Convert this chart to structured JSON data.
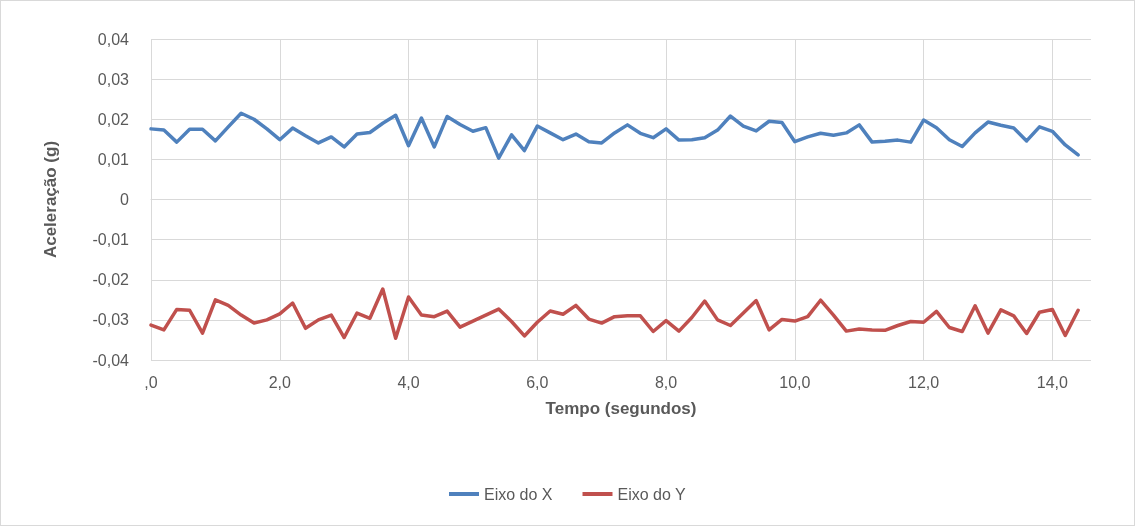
{
  "chart_data": {
    "type": "line",
    "xlabel": "Tempo (segundos)",
    "ylabel": "Aceleração (g)",
    "x": [
      0,
      0.2,
      0.4,
      0.6,
      0.8,
      1,
      1.2,
      1.4,
      1.6,
      1.8,
      2,
      2.2,
      2.4,
      2.6,
      2.8,
      3,
      3.2,
      3.4,
      3.6,
      3.8,
      4,
      4.2,
      4.4,
      4.6,
      4.8,
      5,
      5.2,
      5.4,
      5.6,
      5.8,
      6,
      6.2,
      6.4,
      6.6,
      6.8,
      7,
      7.2,
      7.4,
      7.6,
      7.8,
      8,
      8.2,
      8.4,
      8.6,
      8.8,
      9,
      9.2,
      9.4,
      9.6,
      9.8,
      10,
      10.2,
      10.4,
      10.6,
      10.8,
      11,
      11.2,
      11.4,
      11.6,
      11.8,
      12,
      12.2,
      12.4,
      12.6,
      12.8,
      13,
      13.2,
      13.4,
      13.6,
      13.8,
      14,
      14.2,
      14.4
    ],
    "series": [
      {
        "name": "Eixo do X",
        "color": "#4f81bd",
        "values": [
          0.0176,
          0.0173,
          0.0143,
          0.0175,
          0.0175,
          0.0146,
          0.0181,
          0.0215,
          0.02,
          0.0176,
          0.0149,
          0.0178,
          0.0159,
          0.0141,
          0.0156,
          0.0131,
          0.0163,
          0.0167,
          0.019,
          0.021,
          0.0134,
          0.0203,
          0.0131,
          0.0207,
          0.0187,
          0.017,
          0.0179,
          0.0103,
          0.0161,
          0.0122,
          0.0183,
          0.0166,
          0.0149,
          0.0163,
          0.0144,
          0.0141,
          0.0166,
          0.0186,
          0.0165,
          0.0154,
          0.0176,
          0.0148,
          0.0149,
          0.0154,
          0.0173,
          0.0208,
          0.0183,
          0.0171,
          0.0195,
          0.0192,
          0.0144,
          0.0156,
          0.0165,
          0.016,
          0.0166,
          0.0186,
          0.0143,
          0.0145,
          0.0148,
          0.0143,
          0.0198,
          0.0179,
          0.0149,
          0.0132,
          0.0166,
          0.0193,
          0.0185,
          0.0178,
          0.0146,
          0.0181,
          0.017,
          0.0136,
          0.0111
        ]
      },
      {
        "name": "Eixo do Y",
        "color": "#c0504d",
        "values": [
          -0.0313,
          -0.0325,
          -0.0274,
          -0.0276,
          -0.0333,
          -0.025,
          -0.0264,
          -0.0288,
          -0.0308,
          -0.03,
          -0.0285,
          -0.0258,
          -0.0321,
          -0.03,
          -0.0288,
          -0.0344,
          -0.0283,
          -0.0296,
          -0.0223,
          -0.0346,
          -0.0243,
          -0.0288,
          -0.0292,
          -0.0278,
          -0.0318,
          -0.0303,
          -0.0288,
          -0.0273,
          -0.0304,
          -0.034,
          -0.0306,
          -0.0278,
          -0.0286,
          -0.0264,
          -0.0298,
          -0.0308,
          -0.0292,
          -0.029,
          -0.029,
          -0.0329,
          -0.0302,
          -0.0328,
          -0.0294,
          -0.0253,
          -0.03,
          -0.0314,
          -0.0283,
          -0.0252,
          -0.0325,
          -0.0299,
          -0.0303,
          -0.0292,
          -0.0251,
          -0.0288,
          -0.0328,
          -0.0323,
          -0.0325,
          -0.0326,
          -0.0314,
          -0.0304,
          -0.0306,
          -0.0279,
          -0.0319,
          -0.0329,
          -0.0265,
          -0.0333,
          -0.0275,
          -0.029,
          -0.0334,
          -0.0281,
          -0.0274,
          -0.0339,
          -0.0276
        ]
      }
    ],
    "xlim": [
      0,
      14.6
    ],
    "xticks": [
      {
        "value": 0,
        "label": ",0"
      },
      {
        "value": 2,
        "label": "2,0"
      },
      {
        "value": 4,
        "label": "4,0"
      },
      {
        "value": 6,
        "label": "6,0"
      },
      {
        "value": 8,
        "label": "8,0"
      },
      {
        "value": 10,
        "label": "10,0"
      },
      {
        "value": 12,
        "label": "12,0"
      },
      {
        "value": 14,
        "label": "14,0"
      }
    ],
    "ylim": [
      -0.04,
      0.04
    ],
    "yticks": [
      {
        "value": -0.04,
        "label": "-0,04"
      },
      {
        "value": -0.03,
        "label": "-0,03"
      },
      {
        "value": -0.02,
        "label": "-0,02"
      },
      {
        "value": -0.01,
        "label": "-0,01"
      },
      0,
      {
        "value": 0.01,
        "label": "0,01"
      },
      {
        "value": 0.02,
        "label": "0,02"
      },
      {
        "value": 0.03,
        "label": "0,03"
      },
      {
        "value": 0.04,
        "label": "0,04"
      }
    ],
    "grid": true,
    "legend": "bottom",
    "marker": "none",
    "line_style": "solid"
  }
}
